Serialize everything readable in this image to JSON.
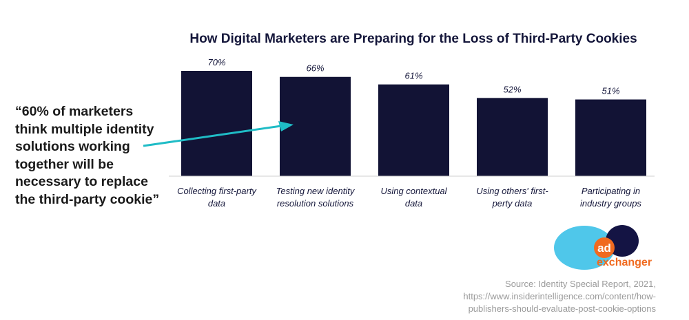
{
  "chart_data": {
    "type": "bar",
    "title": "How Digital Marketers are Preparing for the Loss of Third-Party Cookies",
    "categories": [
      [
        "Collecting first-party",
        "data"
      ],
      [
        "Testing new identity",
        "resolution solutions"
      ],
      [
        "Using contextual",
        "data"
      ],
      [
        "Using others' first-",
        "perty data"
      ],
      [
        "Participating in",
        "industry groups"
      ]
    ],
    "values": [
      70,
      66,
      61,
      52,
      51
    ],
    "value_labels": [
      "70%",
      "66%",
      "61%",
      "52%",
      "51%"
    ],
    "ylim": [
      0,
      70
    ],
    "grid": false,
    "colors": {
      "bar": "#121335",
      "arrow": "#1fbcc6"
    }
  },
  "quote": {
    "lines": [
      "“60% of marketers",
      "think multiple identity",
      "solutions working",
      "together will be",
      "necessary to replace",
      "the third-party cookie”"
    ]
  },
  "source": {
    "lines": [
      "Source: Identity Special Report, 2021,",
      "https://www.insiderintelligence.com/content/how-",
      "publishers-should-evaluate-post-cookie-options"
    ]
  },
  "logo": {
    "ad_text": "ad",
    "name_text": "exchanger",
    "colors": {
      "cyan": "#4fc7ea",
      "navy": "#141444",
      "orange": "#f06a1f"
    }
  }
}
